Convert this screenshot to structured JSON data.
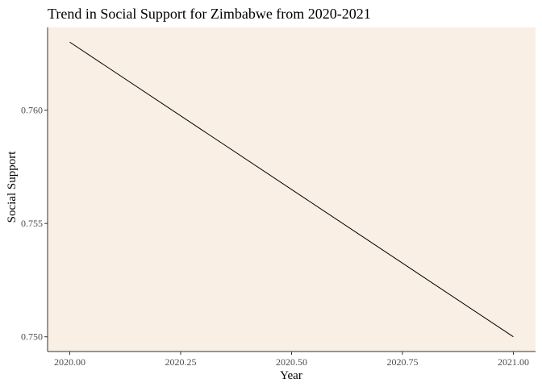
{
  "chart_data": {
    "type": "line",
    "title": "Trend in Social Support for Zimbabwe from 2020-2021",
    "xlabel": "Year",
    "ylabel": "Social Support",
    "x": [
      2020,
      2021
    ],
    "series": [
      {
        "values": [
          0.763,
          0.75
        ]
      }
    ],
    "xlim": [
      2019.95,
      2021.05
    ],
    "ylim": [
      0.74935,
      0.76365
    ],
    "x_ticks": [
      2020.0,
      2020.25,
      2020.5,
      2020.75,
      2021.0
    ],
    "x_tick_labels": [
      "2020.00",
      "2020.25",
      "2020.50",
      "2020.75",
      "2021.00"
    ],
    "y_ticks": [
      0.75,
      0.755,
      0.76
    ],
    "y_tick_labels": [
      "0.750",
      "0.755",
      "0.760"
    ],
    "grid": false,
    "legend": "none",
    "colors": {
      "panel_background": "#f9efe5",
      "line": "#000000",
      "axis": "#333333",
      "tick_text": "#4d4d4d",
      "title_text": "#000000"
    }
  }
}
